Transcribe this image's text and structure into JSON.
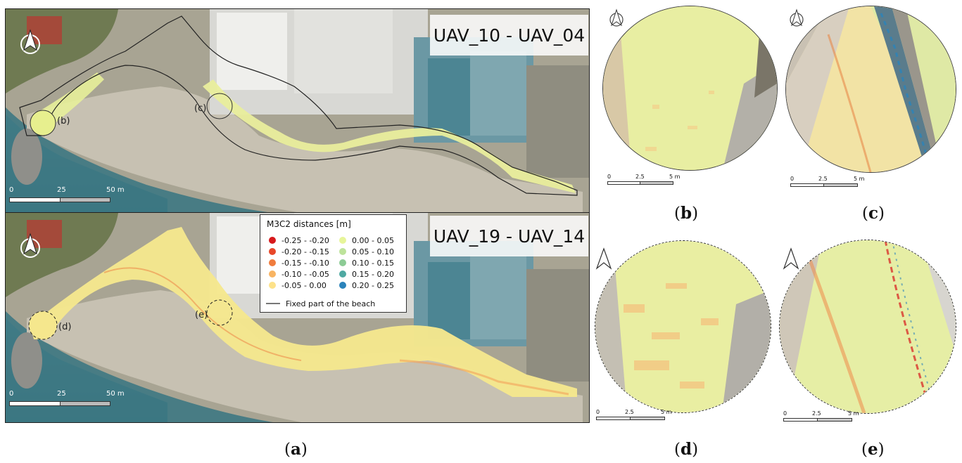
{
  "panel_a": {
    "top_map_title": "UAV_10 - UAV_04",
    "bottom_map_title": "UAV_19 - UAV_14",
    "top_scale": {
      "ticks": [
        "0",
        "25",
        "50 m"
      ]
    },
    "bottom_scale": {
      "ticks": [
        "0",
        "25",
        "50 m"
      ]
    },
    "top_circle_labels": [
      "(b)",
      "(c)"
    ],
    "bottom_circle_labels": [
      "(d)",
      "(e)"
    ],
    "caption": "(a)"
  },
  "legend": {
    "title": "M3C2 distances [m]",
    "items": [
      {
        "label": "-0.25 - -0.20",
        "color": "#d7191c"
      },
      {
        "label": "-0.20 - -0.15",
        "color": "#e8472a"
      },
      {
        "label": "-0.15 - -0.10",
        "color": "#f07c3e"
      },
      {
        "label": "-0.10 - -0.05",
        "color": "#f8b463"
      },
      {
        "label": "-0.05 - 0.00",
        "color": "#fde28a"
      },
      {
        "label": "0.00 - 0.05",
        "color": "#e7f59a"
      },
      {
        "label": "0.05 - 0.10",
        "color": "#bde39b"
      },
      {
        "label": "0.10 - 0.15",
        "color": "#8ccb95"
      },
      {
        "label": "0.15 - 0.20",
        "color": "#4fa9a2"
      },
      {
        "label": "0.20 - 0.25",
        "color": "#2b83ba"
      }
    ],
    "fixed_label": "Fixed part of the beach"
  },
  "zoom_panels": [
    {
      "caption": "(b)",
      "scale": [
        "0",
        "2.5",
        "5 m"
      ]
    },
    {
      "caption": "(c)",
      "scale": [
        "0",
        "2.5",
        "5 m"
      ]
    },
    {
      "caption": "(d)",
      "scale": [
        "0",
        "2.5",
        "5 m"
      ]
    },
    {
      "caption": "(e)",
      "scale": [
        "0",
        "2.5",
        "5 m"
      ]
    }
  ],
  "colors": {
    "sea": "#3f7f88",
    "beach": "#c9c3b4",
    "urban": "#9d9a8e",
    "greenery": "#6f7a52",
    "change_main": "#f0e99a"
  }
}
